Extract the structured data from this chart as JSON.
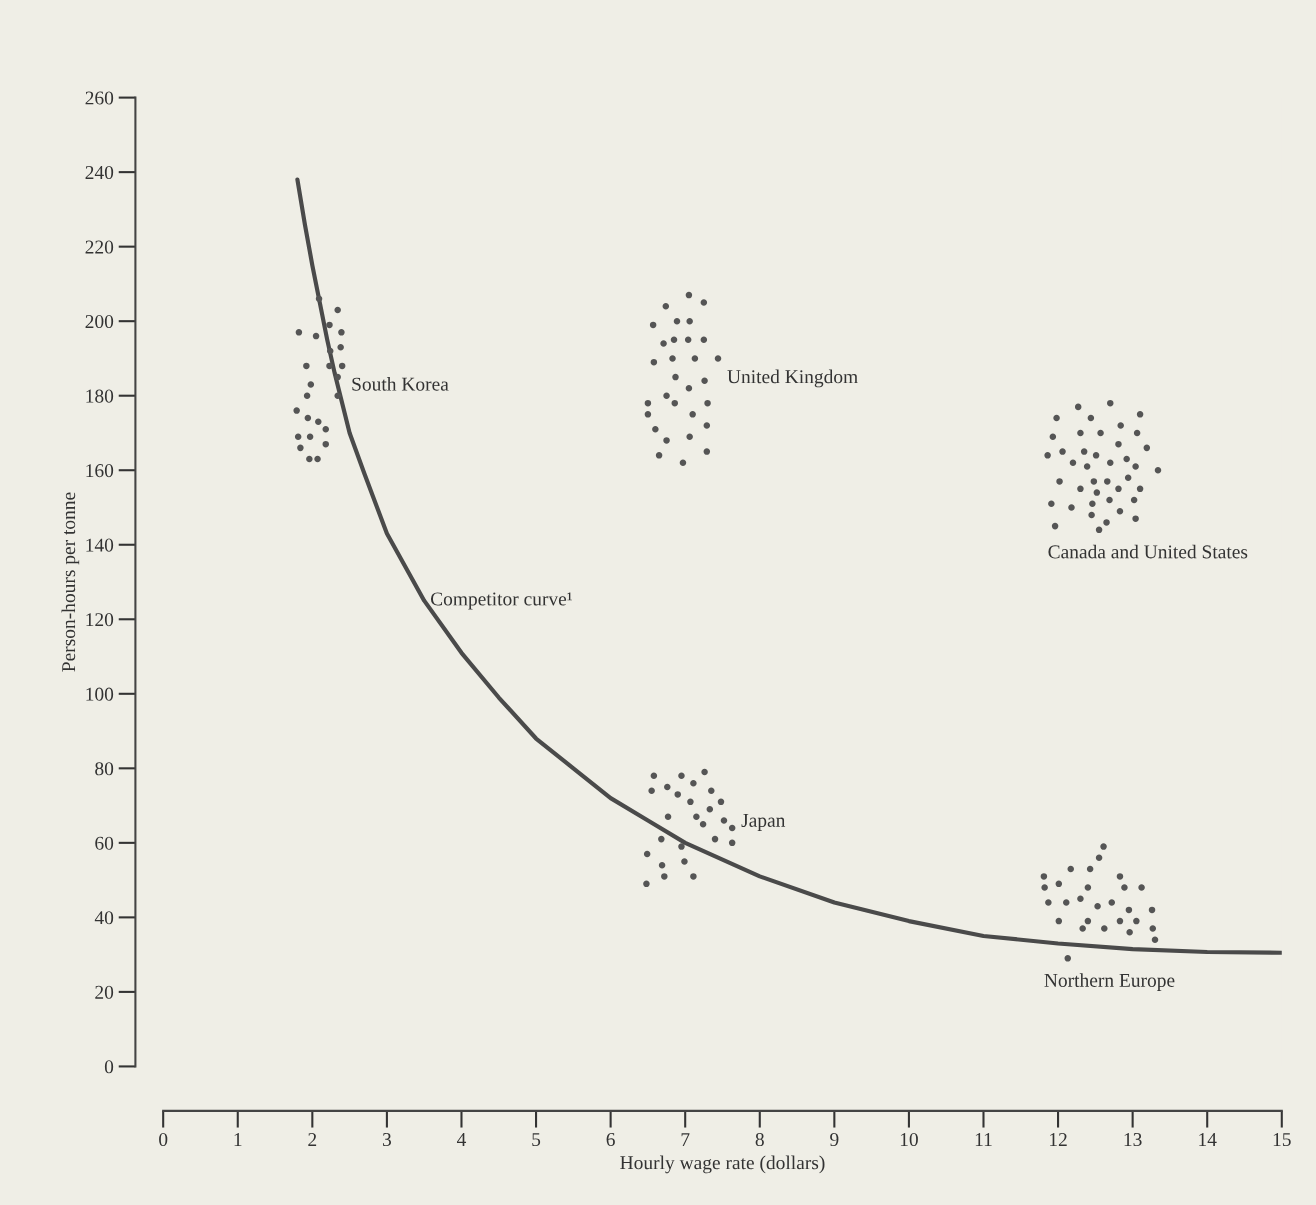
{
  "chart_data": {
    "type": "scatter",
    "xlabel": "Hourly wage rate (dollars)",
    "ylabel": "Person-hours per tonne",
    "xlim": [
      0,
      15
    ],
    "xticks": [
      0,
      1,
      2,
      3,
      4,
      5,
      6,
      7,
      8,
      9,
      10,
      11,
      12,
      13,
      14,
      15
    ],
    "ylim": [
      0,
      260
    ],
    "yticks": [
      0,
      20,
      40,
      60,
      80,
      100,
      120,
      140,
      160,
      180,
      200,
      220,
      240,
      260
    ],
    "grid": false,
    "legend": false,
    "marker": "circle",
    "series": [
      {
        "type": "line",
        "name": "Competitor curve¹",
        "color": "#4a4a4a",
        "line_style": "solid",
        "marker": "none",
        "x": [
          1.8,
          1.9,
          2.0,
          2.1,
          2.2,
          2.3,
          2.5,
          2.7,
          3.0,
          3.5,
          4.0,
          4.5,
          5.0,
          5.5,
          6.0,
          6.5,
          7.0,
          8.0,
          9.0,
          10.0,
          11.0,
          12.0,
          13.0,
          14.0,
          15.0
        ],
        "values": [
          238,
          226,
          215,
          205,
          195,
          186,
          170,
          159,
          143,
          125,
          111,
          99,
          88,
          80,
          72,
          66,
          60,
          51,
          44,
          39,
          35,
          33,
          31.5,
          30.7,
          30.5
        ]
      },
      {
        "name": "South Korea",
        "color": "#555555",
        "x": [
          2.09,
          2.34,
          2.23,
          1.82,
          2.05,
          2.39,
          2.24,
          2.38,
          1.92,
          2.23,
          2.4,
          2.34,
          1.98,
          1.93,
          2.34,
          1.79,
          1.94,
          2.08,
          2.18,
          1.81,
          1.97,
          1.84,
          2.18,
          1.96,
          2.07
        ],
        "values": [
          206,
          203,
          199,
          197,
          196,
          197,
          192,
          193,
          188,
          188,
          188,
          185,
          183,
          180,
          180,
          176,
          174,
          173,
          171,
          169,
          169,
          166,
          167,
          163,
          163
        ]
      },
      {
        "name": "United Kingdom",
        "color": "#555555",
        "x": [
          7.05,
          6.74,
          7.25,
          6.57,
          6.89,
          7.06,
          6.71,
          6.85,
          7.04,
          7.25,
          6.58,
          6.83,
          7.13,
          7.44,
          6.87,
          7.26,
          7.05,
          6.75,
          6.5,
          6.86,
          7.3,
          6.5,
          7.1,
          6.6,
          7.29,
          7.06,
          6.75,
          6.65,
          7.29,
          6.97
        ],
        "values": [
          207,
          204,
          205,
          199,
          200,
          200,
          194,
          195,
          195,
          195,
          189,
          190,
          190,
          190,
          185,
          184,
          182,
          180,
          178,
          178,
          178,
          175,
          175,
          171,
          172,
          169,
          168,
          164,
          165,
          162
        ]
      },
      {
        "name": "Canada and United States",
        "color": "#555555",
        "x": [
          12.27,
          12.7,
          11.98,
          12.44,
          13.1,
          12.84,
          12.3,
          12.57,
          13.06,
          11.93,
          12.81,
          13.19,
          12.06,
          12.35,
          12.51,
          11.86,
          12.92,
          12.2,
          12.39,
          12.7,
          13.04,
          13.34,
          12.02,
          12.48,
          12.66,
          12.94,
          12.3,
          12.52,
          12.81,
          13.1,
          11.91,
          12.46,
          12.69,
          13.02,
          12.18,
          12.83,
          12.45,
          13.04,
          11.96,
          12.65,
          12.55
        ],
        "values": [
          177,
          178,
          174,
          174,
          175,
          172,
          170,
          170,
          170,
          169,
          167,
          166,
          165,
          165,
          164,
          164,
          163,
          162,
          161,
          162,
          161,
          160,
          157,
          157,
          157,
          158,
          155,
          154,
          155,
          155,
          151,
          151,
          152,
          152,
          150,
          149,
          148,
          147,
          145,
          146,
          144
        ]
      },
      {
        "name": "Japan",
        "color": "#555555",
        "x": [
          6.58,
          6.95,
          7.26,
          6.55,
          6.76,
          7.11,
          6.9,
          7.35,
          7.07,
          7.48,
          7.33,
          6.77,
          7.15,
          7.24,
          7.52,
          7.63,
          6.68,
          6.95,
          7.4,
          7.63,
          6.49,
          6.69,
          6.99,
          6.72,
          7.11,
          6.48
        ],
        "values": [
          78,
          78,
          79,
          74,
          75,
          76,
          73,
          74,
          71,
          71,
          69,
          67,
          67,
          65,
          66,
          64,
          61,
          59,
          61,
          60,
          57,
          54,
          55,
          51,
          51,
          49
        ]
      },
      {
        "name": "Northern Europe",
        "color": "#555555",
        "x": [
          12.61,
          12.55,
          11.81,
          12.17,
          12.43,
          12.83,
          12.01,
          12.4,
          11.82,
          12.89,
          13.12,
          12.3,
          12.11,
          11.87,
          12.72,
          12.53,
          13.26,
          12.95,
          12.01,
          12.4,
          13.05,
          12.83,
          12.62,
          12.33,
          13.27,
          12.96,
          13.3,
          12.13
        ],
        "values": [
          59,
          56,
          51,
          53,
          53,
          51,
          49,
          48,
          48,
          48,
          48,
          45,
          44,
          44,
          44,
          43,
          42,
          42,
          39,
          39,
          39,
          39,
          37,
          37,
          37,
          36,
          34,
          29
        ]
      }
    ]
  }
}
